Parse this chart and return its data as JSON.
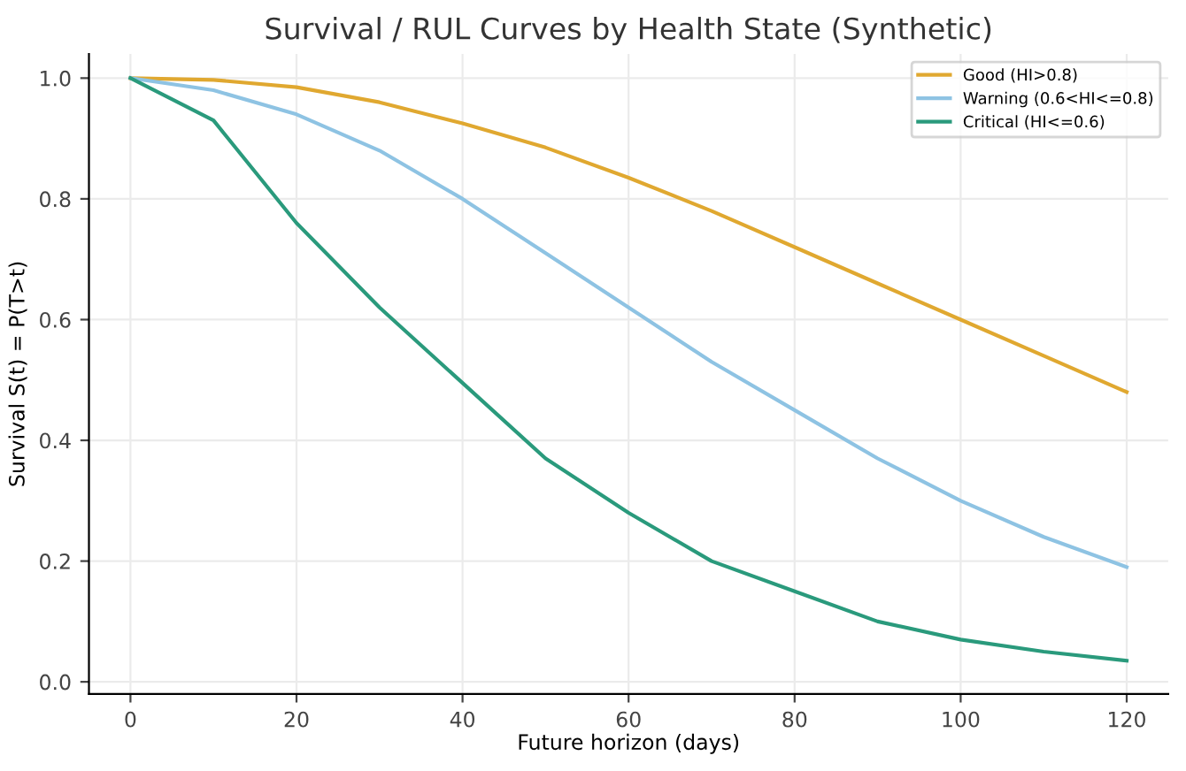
{
  "chart_data": {
    "type": "line",
    "title": "Survival / RUL Curves by Health State (Synthetic)",
    "xlabel": "Future horizon (days)",
    "ylabel": "Survival S(t) = P(T>t)",
    "x": [
      0,
      10,
      20,
      30,
      40,
      50,
      60,
      70,
      80,
      90,
      100,
      110,
      120
    ],
    "series": [
      {
        "name": "Good (HI>0.8)",
        "color": "#e0a830",
        "values": [
          1.0,
          0.997,
          0.985,
          0.96,
          0.925,
          0.885,
          0.835,
          0.78,
          0.72,
          0.66,
          0.6,
          0.54,
          0.48
        ]
      },
      {
        "name": "Warning (0.6<HI<=0.8)",
        "color": "#8ec3e3",
        "values": [
          1.0,
          0.98,
          0.94,
          0.88,
          0.8,
          0.71,
          0.62,
          0.53,
          0.45,
          0.37,
          0.3,
          0.24,
          0.19
        ]
      },
      {
        "name": "Critical (HI<=0.6)",
        "color": "#2a9a7c",
        "values": [
          1.0,
          0.93,
          0.76,
          0.62,
          0.495,
          0.37,
          0.28,
          0.2,
          0.15,
          0.1,
          0.07,
          0.05,
          0.035
        ]
      }
    ],
    "xlim": [
      -5,
      125
    ],
    "ylim": [
      -0.02,
      1.04
    ],
    "xticks": [
      0,
      20,
      40,
      60,
      80,
      100,
      120
    ],
    "yticks": [
      {
        "value": 0,
        "label": "0.0"
      },
      {
        "value": 0.2,
        "label": "0.2"
      },
      {
        "value": 0.4,
        "label": "0.4"
      },
      {
        "value": 0.6,
        "label": "0.6"
      },
      {
        "value": 0.8,
        "label": "0.8"
      },
      {
        "value": 1.0,
        "label": "1.0"
      }
    ],
    "grid": true,
    "legend": "top right",
    "marker": "none",
    "line_style": "solid"
  }
}
